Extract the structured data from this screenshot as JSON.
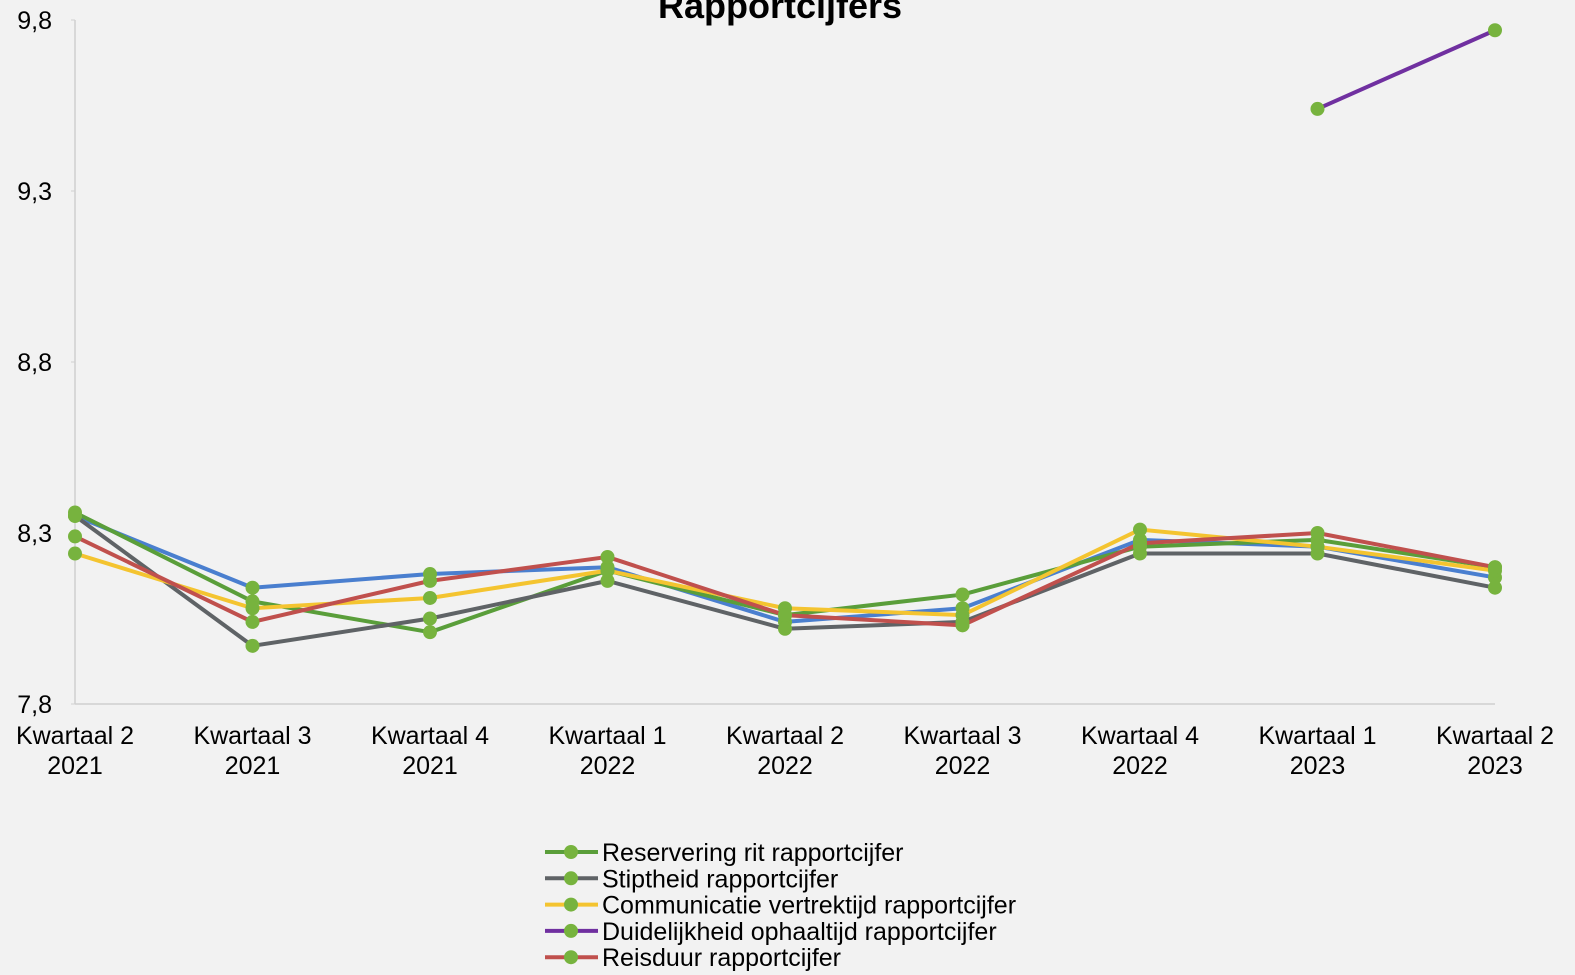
{
  "chart_data": {
    "type": "line",
    "title": "Rapportcijfers",
    "categories": [
      [
        "Kwartaal 2",
        "2021"
      ],
      [
        "Kwartaal 3",
        "2021"
      ],
      [
        "Kwartaal 4",
        "2021"
      ],
      [
        "Kwartaal 1",
        "2022"
      ],
      [
        "Kwartaal 2",
        "2022"
      ],
      [
        "Kwartaal 3",
        "2022"
      ],
      [
        "Kwartaal 4",
        "2022"
      ],
      [
        "Kwartaal 1",
        "2023"
      ],
      [
        "Kwartaal 2",
        "2023"
      ]
    ],
    "series": [
      {
        "color": "#4a7fcf",
        "values": [
          8.35,
          8.14,
          8.18,
          8.2,
          8.04,
          8.08,
          8.28,
          8.26,
          8.17
        ]
      },
      {
        "name": "Reservering rit rapportcijfer",
        "color": "#5a9e3a",
        "values": [
          8.36,
          8.1,
          8.01,
          8.19,
          8.06,
          8.12,
          8.26,
          8.28,
          8.2
        ]
      },
      {
        "name": "Stiptheid rapportcijfer",
        "color": "#5f6366",
        "values": [
          8.35,
          7.97,
          8.05,
          8.16,
          8.02,
          8.04,
          8.24,
          8.24,
          8.14
        ]
      },
      {
        "name": "Communicatie vertrektijd rapportcijfer",
        "color": "#f4c430",
        "values": [
          8.24,
          8.08,
          8.11,
          8.19,
          8.08,
          8.06,
          8.31,
          8.26,
          8.19
        ]
      },
      {
        "name": "Duidelijkheid ophaaltijd rapportcijfer",
        "color": "#7030a0",
        "values": [
          null,
          null,
          null,
          null,
          null,
          null,
          null,
          9.54,
          9.77
        ]
      },
      {
        "name": "Reisduur rapportcijfer",
        "color": "#c0504d",
        "values": [
          8.29,
          8.04,
          8.16,
          8.23,
          8.06,
          8.03,
          8.27,
          8.3,
          8.2
        ]
      }
    ],
    "marker_color": "#77b33e",
    "ylim": [
      7.8,
      9.8
    ],
    "yticks": [
      {
        "value": 7.8,
        "label": "7,8"
      },
      {
        "value": 8.3,
        "label": "8,3"
      },
      {
        "value": 8.8,
        "label": "8,8"
      },
      {
        "value": 9.3,
        "label": "9,3"
      },
      {
        "value": 9.8,
        "label": "9,8"
      }
    ],
    "grid": false,
    "legend": "bottom"
  }
}
